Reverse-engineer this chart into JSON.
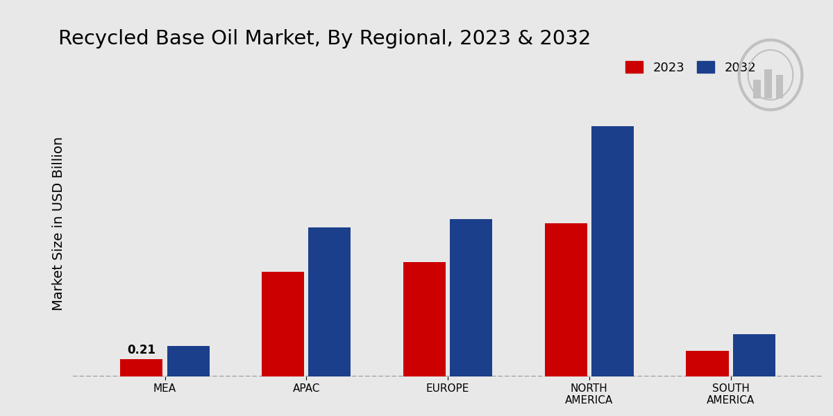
{
  "title": "Recycled Base Oil Market, By Regional, 2023 & 2032",
  "ylabel": "Market Size in USD Billion",
  "categories": [
    "MEA",
    "APAC",
    "EUROPE",
    "NORTH\nAMERICA",
    "SOUTH\nAMERICA"
  ],
  "values_2023": [
    0.21,
    1.3,
    1.42,
    1.9,
    0.32
  ],
  "values_2032": [
    0.38,
    1.85,
    1.95,
    3.1,
    0.52
  ],
  "color_2023": "#CC0000",
  "color_2032": "#1B3F8B",
  "bar_width": 0.3,
  "annotation_2023_mea": "0.21",
  "background_color_light": "#E8E8E8",
  "background_color_top": "#DADADA",
  "legend_labels": [
    "2023",
    "2032"
  ],
  "ylim": [
    0,
    3.8
  ],
  "title_fontsize": 21,
  "axis_label_fontsize": 14,
  "tick_fontsize": 11,
  "legend_fontsize": 13
}
